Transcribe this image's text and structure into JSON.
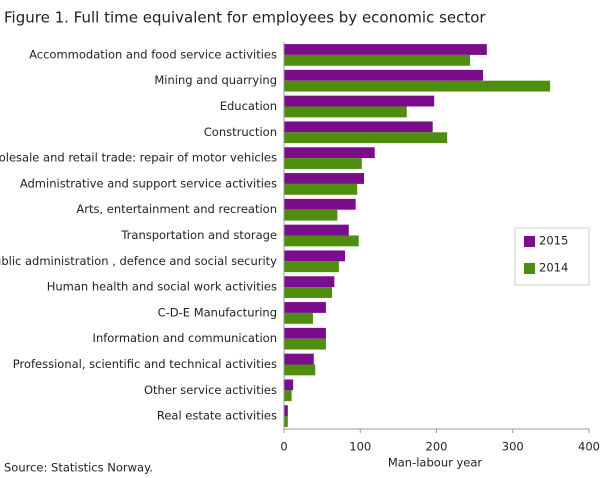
{
  "chart_data": {
    "type": "hbar",
    "title": "Figure 1. Full time equivalent for employees by economic sector",
    "categories": [
      "Accommodation and food service activities",
      "Mining and quarrying",
      "Education",
      "Construction",
      "Wholesale and retail trade: repair of motor vehicles",
      "Administrative and support service activities",
      "Arts, entertainment and recreation",
      "Transportation and storage",
      "Public administration , defence and social security",
      "Human health and social work activities",
      "C-D-E Manufacturing",
      "Information and communication",
      "Professional, scientific and technical activities",
      "Other service activities",
      "Real estate activities"
    ],
    "series": [
      {
        "name": "2015",
        "color": "#7b0d8c",
        "values": [
          266,
          261,
          197,
          195,
          119,
          105,
          94,
          85,
          80,
          66,
          55,
          55,
          39,
          12,
          5
        ]
      },
      {
        "name": "2014",
        "color": "#4e8d0d",
        "values": [
          244,
          349,
          161,
          214,
          102,
          96,
          70,
          98,
          72,
          63,
          38,
          55,
          41,
          10,
          5
        ]
      }
    ],
    "xlim": [
      0,
      400
    ],
    "xticks": [
      0,
      100,
      200,
      300,
      400
    ],
    "xlabel": "Man-labour year",
    "source": "Source: Statistics Norway.",
    "legend": "right",
    "grid": false
  }
}
